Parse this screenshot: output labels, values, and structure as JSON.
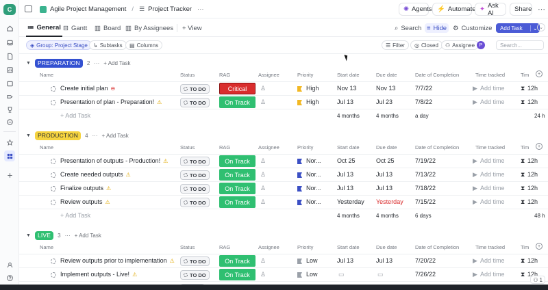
{
  "workspace_letter": "C",
  "breadcrumb": {
    "space": "Agile Project Management",
    "separator": "/",
    "list": "Project Tracker",
    "more": "···"
  },
  "topbar": {
    "agents": "Agents",
    "automate": "Automate",
    "ask_ai": "Ask AI",
    "share": "Share"
  },
  "views": {
    "general": "General",
    "gantt": "Gantt",
    "board": "Board",
    "by_assignees": "By Assignees",
    "add_view": "+ View"
  },
  "view_actions": {
    "search": "Search",
    "hide": "Hide",
    "customize": "Customize",
    "add_task": "Add Task"
  },
  "filterbar": {
    "group": "Group: Project Stage",
    "subtasks": "Subtasks",
    "columns": "Columns",
    "filter": "Filter",
    "closed": "Closed",
    "assignee": "Assignee",
    "avatar": "P",
    "search_placeholder": "Search..."
  },
  "columns": {
    "name": "Name",
    "status": "Status",
    "rag": "RAG",
    "assignee": "Assignee",
    "priority": "Priority",
    "start_date": "Start date",
    "due_date": "Due date",
    "completion": "Date of Completion",
    "time_tracked": "Time tracked",
    "time_est": "Tim"
  },
  "groups": [
    {
      "name": "PREPARATION",
      "count": "2",
      "more": "···",
      "add": "+ Add Task",
      "bg": "#3451d1",
      "fg": "#ffffff",
      "tasks": [
        {
          "name": "Create initial plan",
          "icon": "minus-circle-icon",
          "status": "TO DO",
          "rag": "Critical",
          "rag_color": "#d92d2d",
          "priority": "High",
          "flag": "#f2b824",
          "start": "Nov 13",
          "due": "Nov 13",
          "completion": "7/7/22",
          "time": "Add time",
          "est": "12h"
        },
        {
          "name": "Presentation of plan - Preparation!",
          "icon": "warning-icon",
          "status": "TO DO",
          "rag": "On Track",
          "rag_color": "#2fbf71",
          "priority": "High",
          "flag": "#f2b824",
          "start": "Jul 13",
          "due": "Jul 23",
          "completion": "7/8/22",
          "time": "Add time",
          "est": "12h"
        }
      ],
      "summary": {
        "start": "4 months",
        "due": "4 months",
        "completion": "a day",
        "est": "24 h"
      }
    },
    {
      "name": "PRODUCTION",
      "count": "4",
      "more": "···",
      "add": "+ Add Task",
      "bg": "#f5d33f",
      "fg": "#2a2e34",
      "tasks": [
        {
          "name": "Presentation of outputs - Production!",
          "icon": "warning-icon",
          "status": "TO DO",
          "rag": "On Track",
          "rag_color": "#2fbf71",
          "priority": "Nor...",
          "flag": "#3b4fc4",
          "start": "Oct 25",
          "due": "Oct 25",
          "completion": "7/19/22",
          "time": "Add time",
          "est": "12h"
        },
        {
          "name": "Create needed outputs",
          "icon": "warning-icon",
          "status": "TO DO",
          "rag": "On Track",
          "rag_color": "#2fbf71",
          "priority": "Nor...",
          "flag": "#3b4fc4",
          "start": "Jul 13",
          "due": "Jul 13",
          "completion": "7/13/22",
          "time": "Add time",
          "est": "12h"
        },
        {
          "name": "Finalize outputs",
          "icon": "warning-icon",
          "status": "TO DO",
          "rag": "On Track",
          "rag_color": "#2fbf71",
          "priority": "Nor...",
          "flag": "#3b4fc4",
          "start": "Jul 13",
          "due": "Jul 13",
          "completion": "7/18/22",
          "time": "Add time",
          "est": "12h"
        },
        {
          "name": "Review outputs",
          "icon": "warning-icon",
          "status": "TO DO",
          "rag": "On Track",
          "rag_color": "#2fbf71",
          "priority": "Nor...",
          "flag": "#3b4fc4",
          "start": "Yesterday",
          "due": "Yesterday",
          "due_color": "#d92d2d",
          "completion": "7/15/22",
          "time": "Add time",
          "est": "12h"
        }
      ],
      "summary": {
        "start": "4 months",
        "due": "4 months",
        "completion": "6 days",
        "est": "48 h"
      }
    },
    {
      "name": "LIVE",
      "count": "3",
      "more": "···",
      "add": "+ Add Task",
      "bg": "#2fbf71",
      "fg": "#ffffff",
      "tasks": [
        {
          "name": "Review outputs prior to implementation",
          "icon": "warning-icon",
          "status": "TO DO",
          "rag": "On Track",
          "rag_color": "#2fbf71",
          "priority": "Low",
          "flag": "#9aa0a8",
          "start": "Jul 13",
          "due": "Jul 13",
          "completion": "7/20/22",
          "time": "Add time",
          "est": "12h"
        },
        {
          "name": "Implement outputs - Live!",
          "icon": "warning-icon",
          "status": "TO DO",
          "rag": "On Track",
          "rag_color": "#2fbf71",
          "priority": "Low",
          "flag": "#9aa0a8",
          "start": "",
          "due": "",
          "completion": "7/26/22",
          "time": "Add time",
          "est": "12h"
        },
        {
          "name": "",
          "icon": "",
          "status": "",
          "rag": "",
          "rag_color": "#2fbf71",
          "priority": "",
          "flag": "#9aa0a8",
          "start": "",
          "due": "",
          "completion": "",
          "time": "",
          "est": ""
        }
      ]
    }
  ],
  "footer": {
    "count": "1"
  }
}
